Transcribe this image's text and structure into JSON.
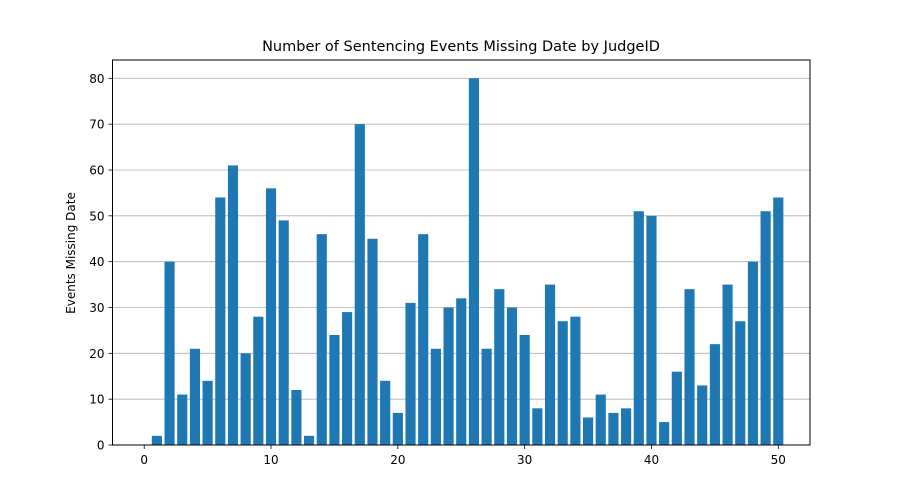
{
  "chart_data": {
    "type": "bar",
    "title": "Number of Sentencing Events Missing Date by JudgeID",
    "xlabel": "",
    "ylabel": "Events Missing Date",
    "xlim": [
      -2.5,
      52.5
    ],
    "ylim": [
      0,
      84
    ],
    "xticks": [
      0,
      10,
      20,
      30,
      40,
      50
    ],
    "yticks": [
      0,
      10,
      20,
      30,
      40,
      50,
      60,
      70,
      80
    ],
    "grid": "y",
    "bar_color": "#1f77b4",
    "x": [
      1,
      2,
      3,
      4,
      5,
      6,
      7,
      8,
      9,
      10,
      11,
      12,
      13,
      14,
      15,
      16,
      17,
      18,
      19,
      20,
      21,
      22,
      23,
      24,
      25,
      26,
      27,
      28,
      29,
      30,
      31,
      32,
      33,
      34,
      35,
      36,
      37,
      38,
      39,
      40,
      41,
      42,
      43,
      44,
      45,
      46,
      47,
      48,
      49,
      50
    ],
    "values": [
      2,
      40,
      11,
      21,
      14,
      54,
      61,
      20,
      28,
      56,
      49,
      12,
      2,
      46,
      24,
      29,
      70,
      45,
      14,
      7,
      31,
      46,
      21,
      30,
      32,
      80,
      21,
      34,
      30,
      24,
      8,
      35,
      27,
      28,
      6,
      11,
      7,
      8,
      51,
      50,
      5,
      16,
      34,
      13,
      22,
      35,
      27,
      40,
      51,
      54
    ]
  }
}
